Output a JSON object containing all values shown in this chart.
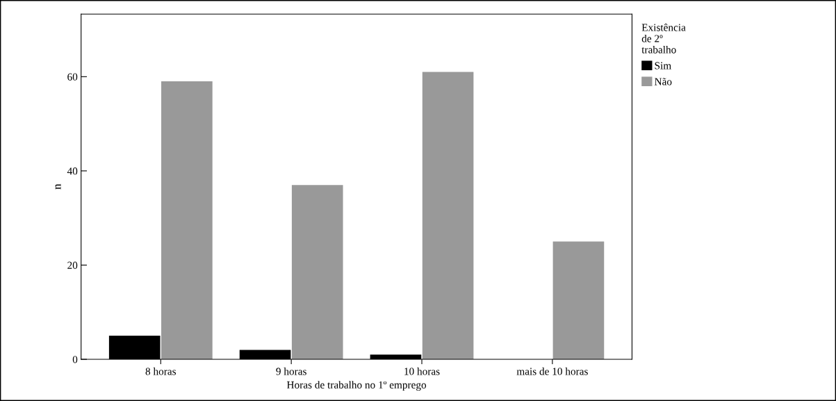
{
  "chart_data": {
    "type": "bar",
    "xlabel": "Horas de trabalho no 1º emprego",
    "ylabel": "n",
    "legend_title": "Existência\nde 2º\ntrabalho",
    "categories": [
      "8 horas",
      "9 horas",
      "10 horas",
      "mais de 10 horas"
    ],
    "series": [
      {
        "name": "Sim",
        "color": "#000000",
        "values": [
          5,
          2,
          1,
          0
        ]
      },
      {
        "name": "Não",
        "color": "#999999",
        "values": [
          59,
          37,
          61,
          25
        ]
      }
    ],
    "ylim": [
      0,
      73.3
    ],
    "yticks": [
      0,
      20,
      40,
      60
    ],
    "grid": false,
    "legend": "top right"
  }
}
